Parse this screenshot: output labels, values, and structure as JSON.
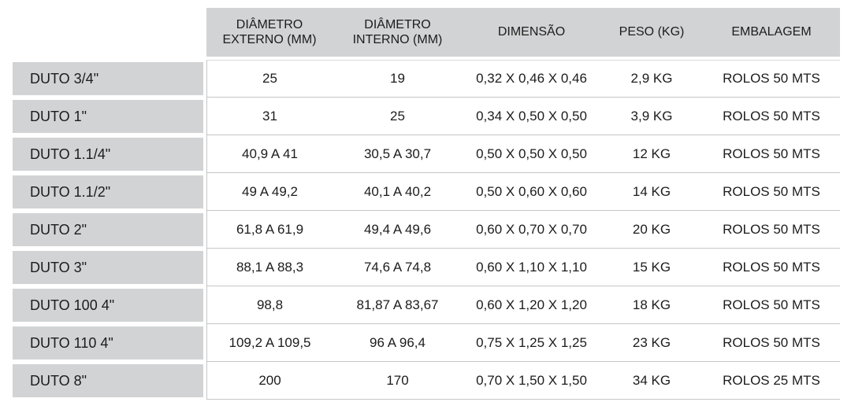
{
  "colors": {
    "cell-gray": "#d2d3d4",
    "line-gray": "#c6c6c6",
    "line-faint": "#dcdcdc",
    "text": "#1c1c1c"
  },
  "table": {
    "columns": [
      "DIÂMETRO EXTERNO (MM)",
      "DIÂMETRO INTERNO (MM)",
      "DIMENSÃO",
      "PESO (KG)",
      "EMBALAGEM"
    ],
    "rows": [
      [
        "DUTO 3/4\"",
        "25",
        "19",
        "0,32 X 0,46 X 0,46",
        "2,9 KG",
        "ROLOS 50 MTS"
      ],
      [
        "DUTO 1\"",
        "31",
        "25",
        "0,34 X 0,50 X 0,50",
        "3,9 KG",
        "ROLOS 50 MTS"
      ],
      [
        "DUTO 1.1/4\"",
        "40,9 A 41",
        "30,5 A 30,7",
        "0,50 X 0,50 X 0,50",
        "12 KG",
        "ROLOS 50 MTS"
      ],
      [
        "DUTO 1.1/2\"",
        "49 A 49,2",
        "40,1 A 40,2",
        "0,50 X 0,60 X 0,60",
        "14 KG",
        "ROLOS 50 MTS"
      ],
      [
        "DUTO 2\"",
        "61,8 A 61,9",
        "49,4 A 49,6",
        "0,60 X 0,70 X 0,70",
        "20 KG",
        "ROLOS 50 MTS"
      ],
      [
        "DUTO 3\"",
        "88,1 A 88,3",
        "74,6 A 74,8",
        "0,60 X 1,10 X 1,10",
        "15 KG",
        "ROLOS 50 MTS"
      ],
      [
        "DUTO 100 4\"",
        "98,8",
        "81,87 A 83,67",
        "0,60 X 1,20 X 1,20",
        "18 KG",
        "ROLOS 50 MTS"
      ],
      [
        "DUTO 110 4\"",
        "109,2 A 109,5",
        "96 A 96,4",
        "0,75 X 1,25 X 1,25",
        "23 KG",
        "ROLOS 50 MTS"
      ],
      [
        "DUTO 8\"",
        "200",
        "170",
        "0,70 X 1,50 X 1,50",
        "34 KG",
        "ROLOS 25 MTS"
      ]
    ]
  }
}
